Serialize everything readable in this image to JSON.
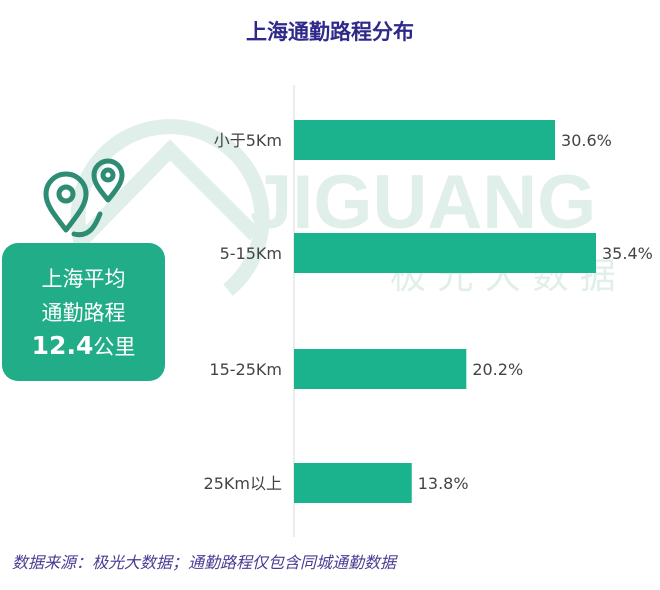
{
  "colors": {
    "title": "#2f2a8a",
    "bar": "#1bb38e",
    "avg_box": "#22ad89",
    "footnote": "#4b3c91",
    "watermark": "#e0efe9",
    "label": "#444444",
    "axis": "#d8d8d8"
  },
  "watermark": {
    "brand": "JIGUANG",
    "cn": "极 光 大 数 据"
  },
  "summary": {
    "line1": "上海平均",
    "line2": "通勤路程",
    "value": "12.4",
    "unit": "公里"
  },
  "footnote": "数据来源：极光大数据；通勤路程仅包含同城通勤数据",
  "icons": [
    "location-pins-icon"
  ],
  "chart_data": {
    "type": "bar",
    "orientation": "horizontal",
    "title": "上海通勤路程分布",
    "categories": [
      "小于5Km",
      "5-15Km",
      "15-25Km",
      "25Km以上"
    ],
    "values": [
      30.6,
      35.4,
      20.2,
      13.8
    ],
    "value_labels": [
      "30.6%",
      "35.4%",
      "20.2%",
      "13.8%"
    ],
    "xlim": [
      0,
      35.4
    ],
    "grid": false,
    "legend": false
  }
}
